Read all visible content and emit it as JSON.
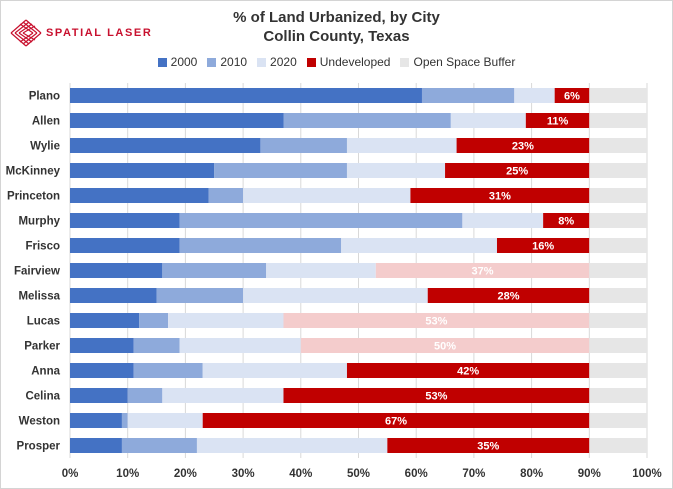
{
  "brand": {
    "name": "SPATIAL LASER",
    "logo_icon": "crosshatch-laser-logo",
    "color": "#c8102e"
  },
  "chart_data": {
    "type": "bar",
    "orientation": "horizontal",
    "stacked": true,
    "title": "% of Land Urbanized, by City",
    "subtitle": "Collin County, Texas",
    "xlabel": "",
    "ylabel": "",
    "xlim": [
      0,
      100
    ],
    "x_ticks": [
      "0%",
      "10%",
      "20%",
      "30%",
      "40%",
      "50%",
      "60%",
      "70%",
      "80%",
      "90%",
      "100%"
    ],
    "grid": "vertical",
    "legend_position": "top",
    "categories": [
      "Plano",
      "Allen",
      "Wylie",
      "McKinney",
      "Princeton",
      "Murphy",
      "Frisco",
      "Fairview",
      "Melissa",
      "Lucas",
      "Parker",
      "Anna",
      "Celina",
      "Weston",
      "Prosper"
    ],
    "series": [
      {
        "name": "2000",
        "color": "#4472c4",
        "values": [
          61,
          37,
          33,
          25,
          24,
          19,
          19,
          16,
          15,
          12,
          11,
          11,
          10,
          9,
          9
        ]
      },
      {
        "name": "2010",
        "color": "#8eaadb",
        "values": [
          16,
          29,
          15,
          23,
          6,
          49,
          28,
          18,
          15,
          5,
          8,
          12,
          6,
          1,
          13
        ]
      },
      {
        "name": "2020",
        "color": "#dae3f3",
        "values": [
          7,
          13,
          19,
          17,
          29,
          14,
          27,
          19,
          32,
          20,
          21,
          25,
          21,
          13,
          33
        ]
      },
      {
        "name": "Undeveloped",
        "color": "#c00000",
        "faded_color": "#f4cccc",
        "values": [
          6,
          11,
          23,
          25,
          31,
          8,
          16,
          37,
          28,
          53,
          50,
          42,
          53,
          67,
          35
        ]
      },
      {
        "name": "Open Space Buffer",
        "color": "#e6e6e6",
        "values": [
          10,
          10,
          10,
          10,
          10,
          10,
          10,
          10,
          10,
          10,
          10,
          10,
          10,
          10,
          10
        ]
      }
    ],
    "undeveloped_faded": [
      false,
      false,
      false,
      false,
      false,
      false,
      false,
      true,
      false,
      true,
      true,
      false,
      false,
      false,
      false
    ],
    "data_labels": [
      "6%",
      "11%",
      "23%",
      "25%",
      "31%",
      "8%",
      "16%",
      "37%",
      "28%",
      "53%",
      "50%",
      "42%",
      "53%",
      "67%",
      "35%"
    ]
  }
}
